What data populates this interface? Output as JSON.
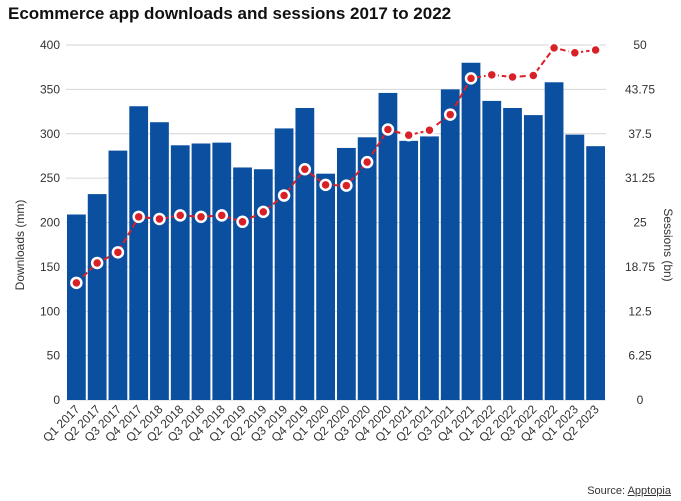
{
  "chart_data": {
    "type": "bar",
    "title": "Ecommerce app downloads and sessions 2017 to 2022",
    "categories": [
      "Q1 2017",
      "Q2 2017",
      "Q3 2017",
      "Q4 2017",
      "Q1 2018",
      "Q2 2018",
      "Q3 2018",
      "Q4 2018",
      "Q1 2019",
      "Q2 2019",
      "Q3 2019",
      "Q4 2019",
      "Q1 2020",
      "Q2 2020",
      "Q3 2020",
      "Q4 2020",
      "Q1 2021",
      "Q2 2021",
      "Q3 2021",
      "Q4 2021",
      "Q1 2022",
      "Q2 2022",
      "Q3 2022",
      "Q4 2022",
      "Q1 2023",
      "Q2 2023"
    ],
    "series": [
      {
        "name": "Downloads",
        "type": "bar",
        "axis": "left",
        "color": "#0a4fa0",
        "values": [
          209,
          232,
          281,
          331,
          313,
          287,
          289,
          290,
          262,
          260,
          306,
          329,
          255,
          284,
          296,
          346,
          292,
          297,
          350,
          380,
          337,
          329,
          321,
          358,
          299,
          286
        ]
      },
      {
        "name": "Sessions",
        "type": "line",
        "axis": "right",
        "color": "#d92027",
        "values": [
          16.5,
          19.3,
          20.8,
          25.8,
          25.5,
          26.0,
          25.8,
          26.0,
          25.1,
          26.5,
          28.8,
          32.5,
          30.3,
          30.2,
          33.5,
          38.1,
          37.3,
          38.0,
          40.2,
          45.3,
          45.8,
          45.5,
          45.7,
          49.6,
          48.9,
          49.3
        ]
      }
    ],
    "ylabel_left": "Downloads (mm)",
    "ylabel_right": "Sessions (bn)",
    "ylim_left": [
      0,
      400
    ],
    "ylim_right": [
      0,
      50
    ],
    "yticks_left": [
      "0",
      "50",
      "100",
      "150",
      "200",
      "250",
      "300",
      "350",
      "400"
    ],
    "yticks_right": [
      "0",
      "6.25",
      "12.5",
      "18.75",
      "25",
      "31.25",
      "37.5",
      "43.75",
      "50"
    ],
    "grid": true,
    "source_label": "Source:",
    "source_name": "Apptopia"
  }
}
